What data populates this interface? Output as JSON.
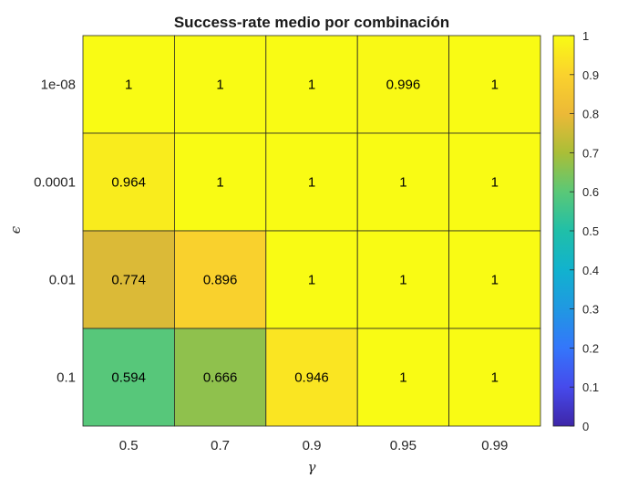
{
  "chart_data": {
    "type": "heatmap",
    "title": "Success-rate medio por combinación",
    "xlabel": "γ",
    "ylabel": "ϵ",
    "x_categories": [
      "0.5",
      "0.7",
      "0.9",
      "0.95",
      "0.99"
    ],
    "y_categories": [
      "1e-08",
      "0.0001",
      "0.01",
      "0.1"
    ],
    "values": [
      [
        1,
        1,
        1,
        0.996,
        1
      ],
      [
        0.964,
        1,
        1,
        1,
        1
      ],
      [
        0.774,
        0.896,
        1,
        1,
        1
      ],
      [
        0.594,
        0.666,
        0.946,
        1,
        1
      ]
    ],
    "value_labels": [
      [
        "1",
        "1",
        "1",
        "0.996",
        "1"
      ],
      [
        "0.964",
        "1",
        "1",
        "1",
        "1"
      ],
      [
        "0.774",
        "0.896",
        "1",
        "1",
        "1"
      ],
      [
        "0.594",
        "0.666",
        "0.946",
        "1",
        "1"
      ]
    ],
    "colorbar": {
      "range": [
        0,
        1
      ],
      "ticks": [
        0,
        0.1,
        0.2,
        0.3,
        0.4,
        0.5,
        0.6,
        0.7,
        0.8,
        0.9,
        1
      ],
      "tick_labels": [
        "0",
        "0.1",
        "0.2",
        "0.3",
        "0.4",
        "0.5",
        "0.6",
        "0.7",
        "0.8",
        "0.9",
        "1"
      ],
      "colormap": "parula",
      "placement": "right"
    }
  }
}
